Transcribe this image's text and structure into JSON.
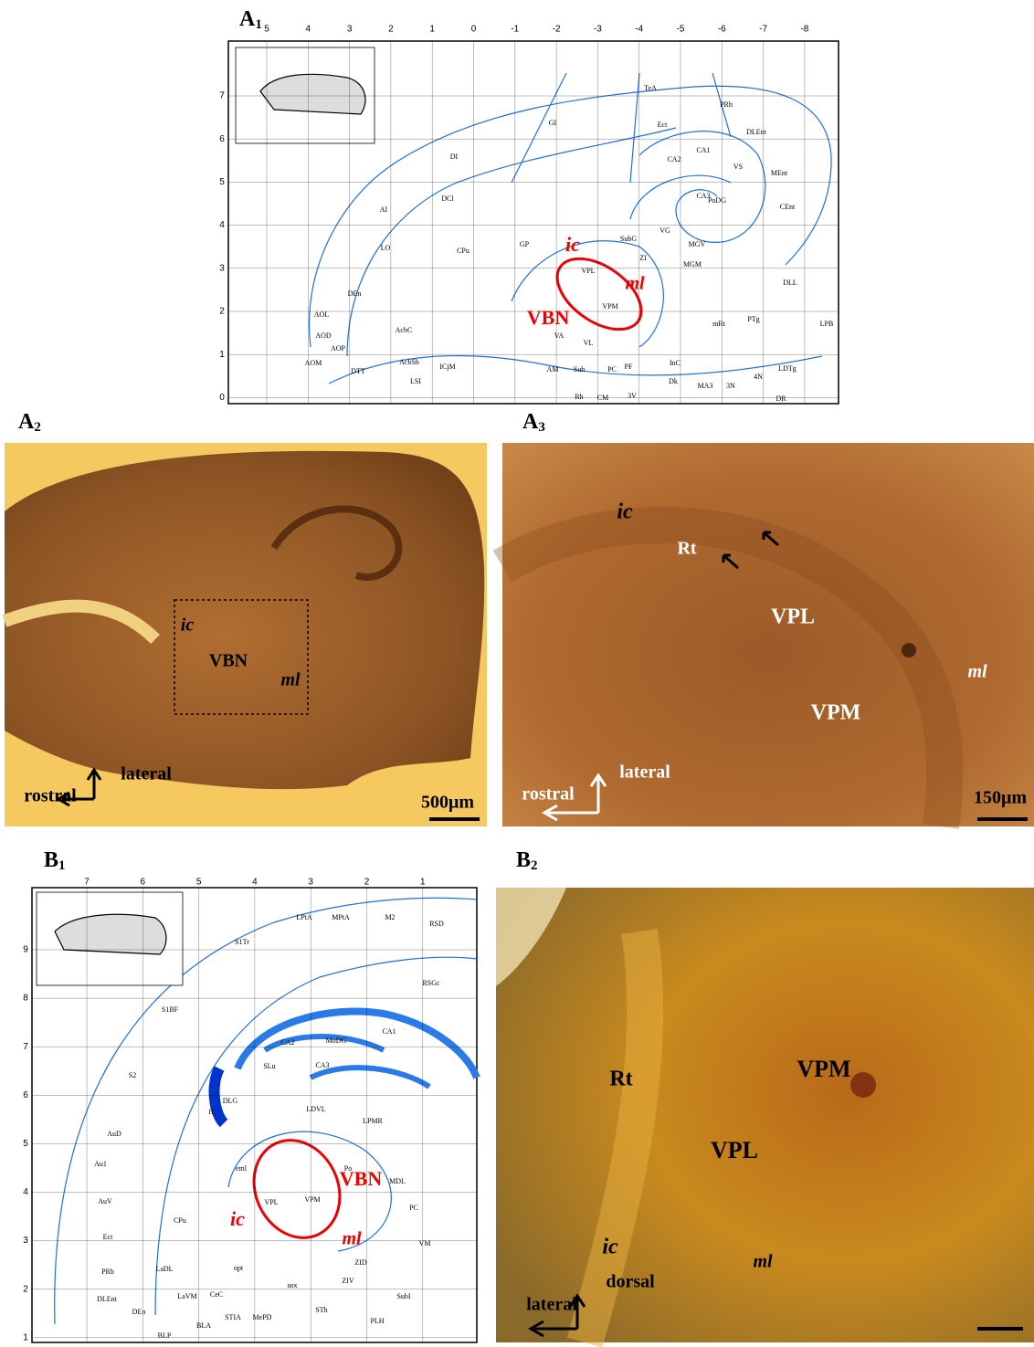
{
  "panels": [
    {
      "label": "A",
      "subscript": "1",
      "top_axis": [
        "5",
        "4",
        "3",
        "2",
        "1",
        "0",
        "-1",
        "-2",
        "-3",
        "-4",
        "-5",
        "-6",
        "-7",
        "-8"
      ],
      "left_axis": [
        "7",
        "6",
        "5",
        "4",
        "3",
        "2",
        "1",
        "0"
      ],
      "regions": [
        "TeA",
        "PRh",
        "GI",
        "Ect",
        "DLEnt",
        "DI",
        "CA1",
        "CA2",
        "CA3",
        "PoDG",
        "VS",
        "MEnt",
        "CEnt",
        "AI",
        "DCl",
        "LO",
        "CPu",
        "GP",
        "VG",
        "SubG",
        "ZI",
        "MGV",
        "MGM",
        "VPL",
        "VPM",
        "DLL",
        "PTg",
        "mRt",
        "AOL",
        "AOD",
        "AOM",
        "AOP",
        "AcbC",
        "AcbSh",
        "DEn",
        "DTT",
        "LSI",
        "ICjM",
        "VA",
        "VL",
        "AM",
        "Sub",
        "PC",
        "PF",
        "Rh",
        "CM",
        "3V",
        "InC",
        "Dk",
        "MA3",
        "3N",
        "4N",
        "DR",
        "LDTg",
        "LPB"
      ],
      "annotations": [
        "ic",
        "ml",
        "VBN"
      ]
    },
    {
      "label": "A",
      "subscript": "2",
      "annotations": [
        "ic",
        "VBN",
        "ml",
        "lateral",
        "rostral",
        "500μm"
      ]
    },
    {
      "label": "A",
      "subscript": "3",
      "annotations": [
        "ic",
        "Rt",
        "VPL",
        "VPM",
        "ml",
        "lateral",
        "rostral",
        "150μm"
      ]
    },
    {
      "label": "B",
      "subscript": "1",
      "top_axis": [
        "7",
        "6",
        "5",
        "4",
        "3",
        "2",
        "1"
      ],
      "left_axis": [
        "9",
        "8",
        "7",
        "6",
        "5",
        "4",
        "3",
        "2",
        "1"
      ],
      "regions": [
        "LPtA",
        "MPtA",
        "M2",
        "RSD",
        "S1Tr",
        "S1BF",
        "RSGc",
        "CA1",
        "CA2",
        "CA3",
        "MoDG",
        "SLu",
        "S2",
        "AuD",
        "Au1",
        "AuV",
        "Ect",
        "PRh",
        "DLEnt",
        "CPu",
        "LDVL",
        "LPMR",
        "DLG",
        "VPL",
        "VPM",
        "Po",
        "MDL",
        "PC",
        "VM",
        "ZID",
        "ZIV",
        "BLA",
        "BLP",
        "LaDL",
        "LaVM",
        "CeC",
        "STIA",
        "MePD",
        "STh",
        "PLH",
        "SubI",
        "DEn",
        "opt",
        "sox",
        "fi",
        "eml"
      ],
      "annotations": [
        "VBN",
        "ic",
        "ml"
      ]
    },
    {
      "label": "B",
      "subscript": "2",
      "annotations": [
        "Rt",
        "VPM",
        "VPL",
        "ic",
        "ml",
        "dorsal",
        "lateral"
      ]
    }
  ]
}
